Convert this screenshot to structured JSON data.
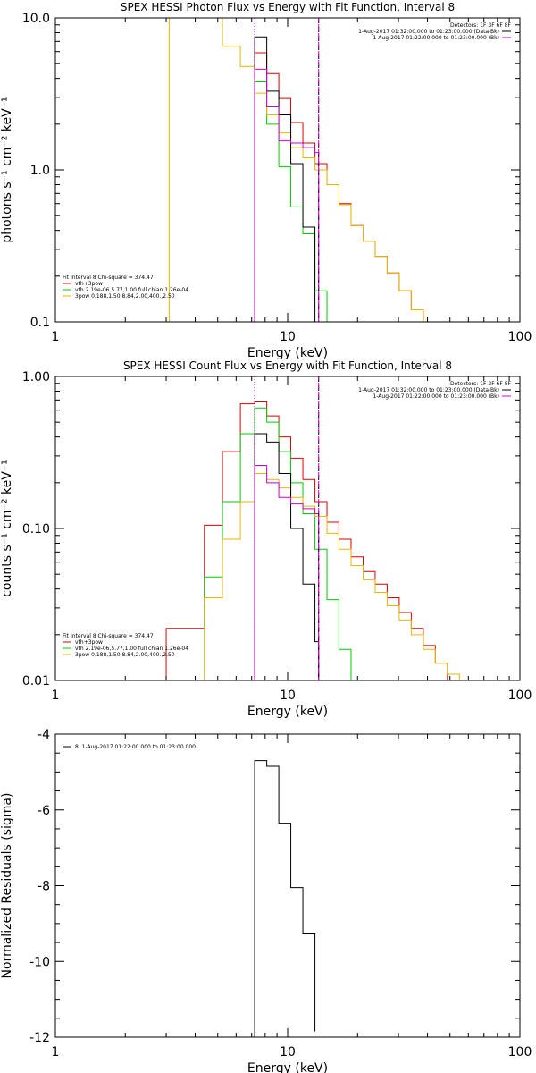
{
  "chart_data": [
    {
      "type": "line",
      "id": "photon",
      "title": "SPEX HESSI Photon Flux vs Energy with Fit Function, Interval 8",
      "xlabel": "Energy (keV)",
      "ylabel": "photons s⁻¹ cm⁻² keV⁻¹",
      "xscale": "log",
      "yscale": "log",
      "xlim": [
        1,
        100
      ],
      "ylim": [
        0.1,
        10
      ],
      "xticks": [
        {
          "v": 1,
          "label": "1"
        },
        {
          "v": 10,
          "label": "10"
        },
        {
          "v": 100,
          "label": "100"
        }
      ],
      "yticks": [
        {
          "v": 0.1,
          "label": "0.1"
        },
        {
          "v": 1,
          "label": "1.0"
        },
        {
          "v": 10,
          "label": "10.0"
        }
      ],
      "vlines": [
        {
          "x": 7.21,
          "style": "dotted",
          "color": "#000000"
        },
        {
          "x": 7.21,
          "style": "dotted",
          "color": "#cc00cc"
        },
        {
          "x": 13.6,
          "style": "dashed",
          "color": "#000000"
        },
        {
          "x": 13.6,
          "style": "dashed",
          "color": "#cc00cc"
        }
      ],
      "legend_right": {
        "header": "Detectors: 1F 3F 6F 8F",
        "entries": [
          {
            "label": "1-Aug-2017 01:32:00.000 to 01:23:00.000 (Data-Bk)",
            "color": "#000000"
          },
          {
            "label": "1-Aug-2017 01:22:00.000 to 01:23:00.000 (Bk)",
            "color": "#cc00cc"
          }
        ]
      },
      "legend_left": {
        "header": "Fit Interval 8   Chi-square = 374.47",
        "entries": [
          {
            "label": "vth+3pow",
            "color": "#dd0000"
          },
          {
            "label": "vth 2.19e-06,5.77,1.00  full chian 1.26e-04",
            "color": "#00cc00"
          },
          {
            "label": "3pow 0.188,1.50,8.84,2.00,400.,2.50",
            "color": "#e6b800"
          }
        ]
      },
      "series": [
        {
          "name": "vth+3pow",
          "color": "#dd0000",
          "edges": [
            7.21,
            8.13,
            9.16,
            10.32,
            11.63,
            13.11,
            14.77,
            16.64,
            18.75,
            21.13,
            23.81,
            26.83,
            30.23,
            34.06,
            38.38,
            43.25
          ],
          "values": [
            5.9,
            4.3,
            2.95,
            2.05,
            1.5,
            1.1,
            0.8,
            0.6,
            0.43,
            0.34,
            0.27,
            0.21,
            0.16,
            0.12,
            0.1
          ]
        },
        {
          "name": "vth",
          "color": "#00cc00",
          "edges": [
            7.21,
            8.13,
            9.16,
            10.32,
            11.63,
            13.11,
            14.77,
            16.64
          ],
          "values": [
            3.8,
            2.0,
            1.05,
            0.57,
            0.38,
            0.16,
            0.1
          ]
        },
        {
          "name": "3pow",
          "color": "#e6b800",
          "edges": [
            3.09,
            4.38,
            5.24,
            6.26,
            7.21,
            8.13,
            9.16,
            10.32,
            11.63,
            13.11,
            14.77,
            16.64,
            18.75,
            21.13,
            23.81,
            26.83,
            30.23,
            34.06,
            38.38,
            43.25,
            48.74
          ],
          "values": [
            10,
            10,
            6.5,
            4.8,
            3.2,
            2.3,
            1.75,
            1.4,
            1.2,
            1.0,
            0.8,
            0.59,
            0.43,
            0.34,
            0.27,
            0.21,
            0.16,
            0.12,
            0.1,
            0.1
          ]
        },
        {
          "name": "Data-Bk",
          "color": "#000000",
          "edges": [
            7.21,
            8.13,
            9.16,
            10.32,
            11.63,
            13.11,
            13.6
          ],
          "values": [
            7.5,
            3.3,
            2.3,
            1.1,
            0.42,
            0.1
          ]
        },
        {
          "name": "Bk",
          "color": "#cc00cc",
          "edges": [
            7.21,
            8.13,
            9.16,
            10.32,
            11.63,
            13.11,
            13.6
          ],
          "values": [
            4.6,
            2.6,
            1.55,
            1.5,
            1.4,
            1.3
          ]
        }
      ]
    },
    {
      "type": "line",
      "id": "count",
      "title": "SPEX HESSI Count Flux vs Energy with Fit Function, Interval 8",
      "xlabel": "Energy (keV)",
      "ylabel": "counts s⁻¹ cm⁻² keV⁻¹",
      "xscale": "log",
      "yscale": "log",
      "xlim": [
        1,
        100
      ],
      "ylim": [
        0.01,
        1
      ],
      "xticks": [
        {
          "v": 1,
          "label": "1"
        },
        {
          "v": 10,
          "label": "10"
        },
        {
          "v": 100,
          "label": "100"
        }
      ],
      "yticks": [
        {
          "v": 0.01,
          "label": "0.01"
        },
        {
          "v": 0.1,
          "label": "0.10"
        },
        {
          "v": 1,
          "label": "1.00"
        }
      ],
      "vlines": [
        {
          "x": 7.21,
          "style": "dotted",
          "color": "#000000"
        },
        {
          "x": 7.21,
          "style": "dotted",
          "color": "#cc00cc"
        },
        {
          "x": 13.6,
          "style": "dashed",
          "color": "#000000"
        },
        {
          "x": 13.6,
          "style": "dashed",
          "color": "#cc00cc"
        }
      ],
      "legend_right": {
        "header": "Detectors: 1F 3F 6F 8F",
        "entries": [
          {
            "label": "1-Aug-2017 01:32:00.000 to 01:23:00.000 (Data-Bk)",
            "color": "#000000"
          },
          {
            "label": "1-Aug-2017 01:22:00.000 to 01:23:00.000 (Bk)",
            "color": "#cc00cc"
          }
        ]
      },
      "legend_left": {
        "header": "Fit Interval 8   Chi-square = 374.47",
        "entries": [
          {
            "label": "vth+3pow",
            "color": "#dd0000"
          },
          {
            "label": "vth 2.19e-06,5.77,1.00  full chian 1.26e-04",
            "color": "#00cc00"
          },
          {
            "label": "3pow 0.188,1.50,8.84,2.00,400.,2.50",
            "color": "#e6b800"
          }
        ]
      },
      "series": [
        {
          "name": "vth+3pow",
          "color": "#dd0000",
          "edges": [
            3.0,
            4.38,
            5.24,
            6.26,
            7.21,
            8.13,
            9.16,
            10.32,
            11.63,
            13.11,
            14.77,
            16.64,
            18.75,
            21.13,
            23.81,
            26.83,
            30.23,
            34.06,
            38.38,
            43.25,
            48.74,
            54.93
          ],
          "values": [
            0.022,
            0.105,
            0.32,
            0.66,
            0.68,
            0.55,
            0.4,
            0.29,
            0.21,
            0.15,
            0.11,
            0.085,
            0.065,
            0.052,
            0.043,
            0.035,
            0.028,
            0.022,
            0.017,
            0.013,
            0.01
          ]
        },
        {
          "name": "vth",
          "color": "#00cc00",
          "edges": [
            4.38,
            5.24,
            6.26,
            7.21,
            8.13,
            9.16,
            10.32,
            11.63,
            13.11,
            14.77,
            16.64,
            18.75
          ],
          "values": [
            0.048,
            0.15,
            0.42,
            0.62,
            0.5,
            0.32,
            0.2,
            0.125,
            0.073,
            0.034,
            0.016
          ]
        },
        {
          "name": "3pow",
          "color": "#e6b800",
          "edges": [
            3.0,
            4.38,
            5.24,
            6.26,
            7.21,
            8.13,
            9.16,
            10.32,
            11.63,
            13.11,
            14.77,
            16.64,
            18.75,
            21.13,
            23.81,
            26.83,
            30.23,
            34.06,
            38.38,
            43.25,
            48.74,
            54.93,
            61.89
          ],
          "values": [
            0.01,
            0.035,
            0.085,
            0.15,
            0.23,
            0.21,
            0.185,
            0.16,
            0.14,
            0.12,
            0.093,
            0.073,
            0.057,
            0.046,
            0.038,
            0.031,
            0.025,
            0.02,
            0.016,
            0.013,
            0.011,
            0.01
          ]
        },
        {
          "name": "Data-Bk",
          "color": "#000000",
          "edges": [
            7.21,
            8.13,
            9.16,
            10.32,
            11.63,
            13.11,
            13.6
          ],
          "values": [
            0.42,
            0.37,
            0.23,
            0.1,
            0.043,
            0.018
          ]
        },
        {
          "name": "Bk",
          "color": "#cc00cc",
          "edges": [
            7.21,
            8.13,
            9.16,
            10.32,
            11.63,
            13.11,
            13.6
          ],
          "values": [
            0.26,
            0.2,
            0.16,
            0.145,
            0.135,
            0.125
          ]
        }
      ]
    },
    {
      "type": "line",
      "id": "resid",
      "title": "",
      "xlabel": "Energy (keV)",
      "ylabel": "Normalized Residuals (sigma)",
      "xscale": "log",
      "yscale": "linear",
      "xlim": [
        1,
        100
      ],
      "ylim": [
        -12,
        -4
      ],
      "xticks": [
        {
          "v": 1,
          "label": "1"
        },
        {
          "v": 10,
          "label": "10"
        },
        {
          "v": 100,
          "label": "100"
        }
      ],
      "yticks": [
        {
          "v": -12,
          "label": "-12"
        },
        {
          "v": -10,
          "label": "-10"
        },
        {
          "v": -8,
          "label": "-8"
        },
        {
          "v": -6,
          "label": "-6"
        },
        {
          "v": -4,
          "label": "-4"
        }
      ],
      "vlines": [],
      "legend_right": null,
      "legend_left": {
        "header": "",
        "entries": [
          {
            "label": "8.  1-Aug-2017 01:22:00.000 to 01:23:00.000",
            "color": "#000000"
          }
        ]
      },
      "series": [
        {
          "name": "8",
          "color": "#000000",
          "edges": [
            7.21,
            8.13,
            9.16,
            10.32,
            11.63,
            13.11
          ],
          "values": [
            -4.7,
            -4.85,
            -6.35,
            -8.05,
            -9.25,
            -11.85
          ]
        }
      ]
    }
  ]
}
